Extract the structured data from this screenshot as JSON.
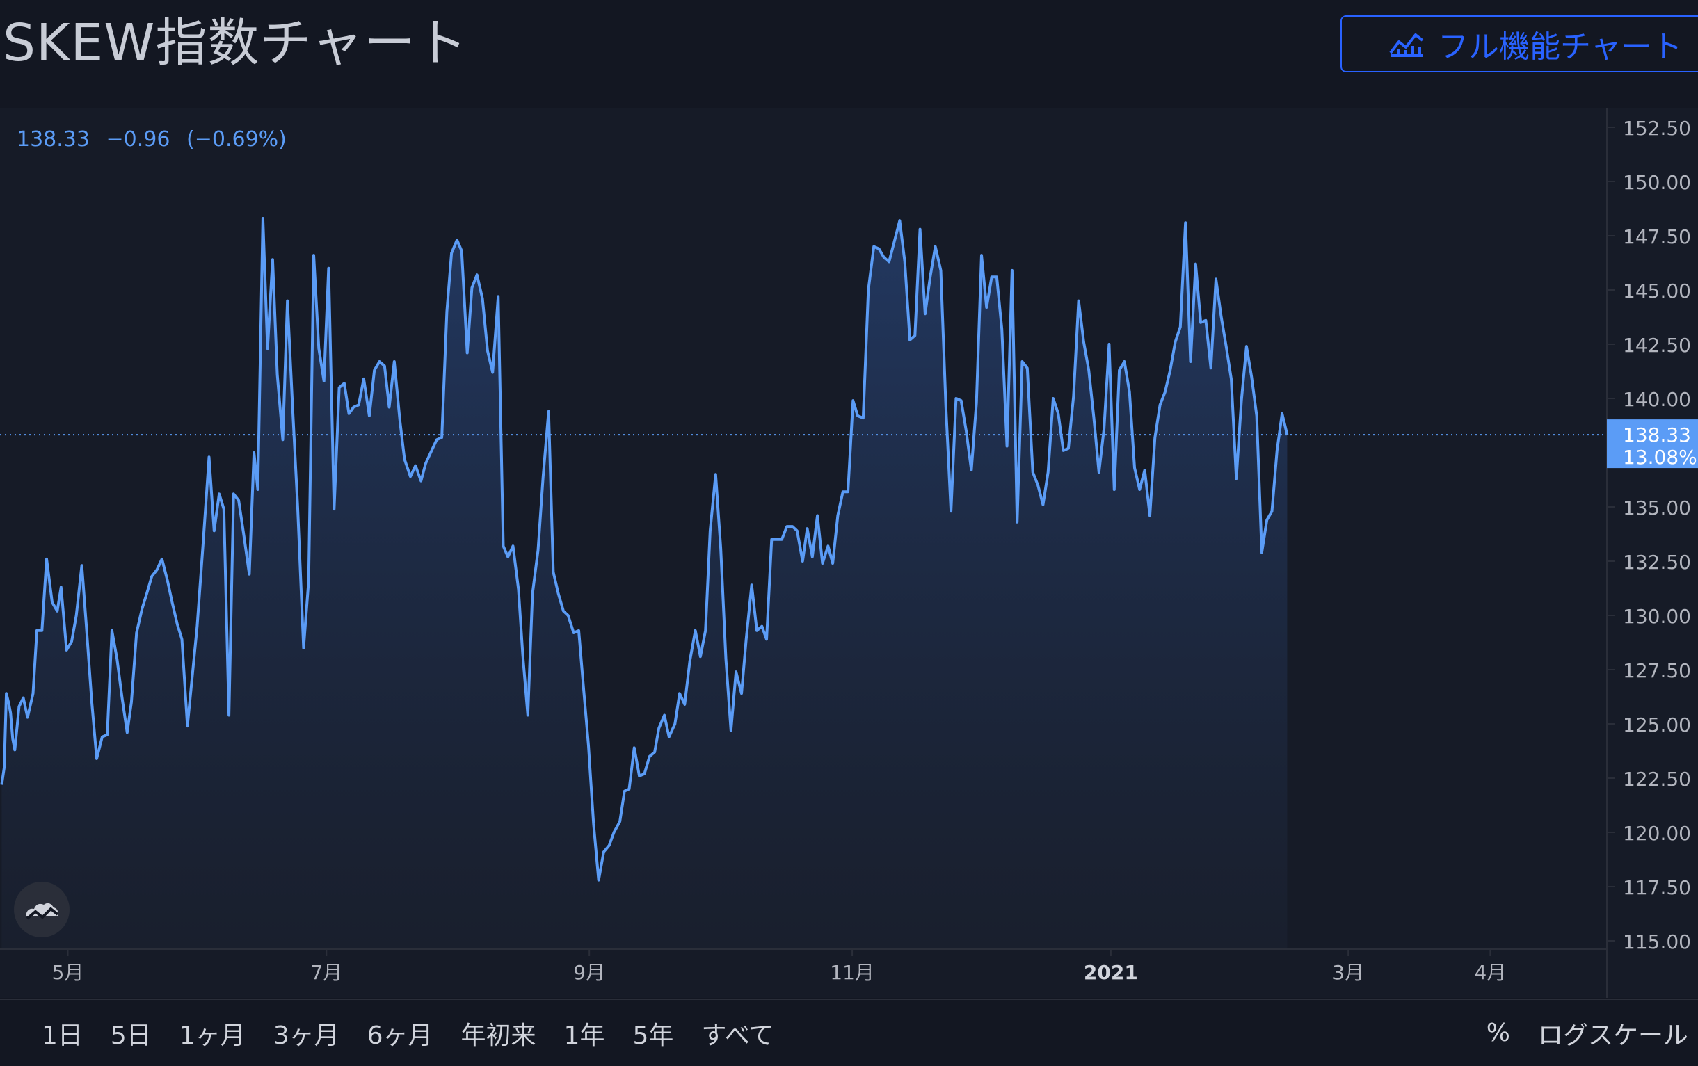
{
  "header": {
    "title": "SKEW指数チャート",
    "full_chart_button": "フル機能チャート"
  },
  "quote": {
    "last": "138.33",
    "change": "−0.96",
    "change_pct": "(−0.69%)"
  },
  "price_label": {
    "value": "138.33",
    "pct": "13.08%"
  },
  "range_buttons": [
    "1日",
    "5日",
    "1ヶ月",
    "3ヶ月",
    "6ヶ月",
    "年初来",
    "1年",
    "5年",
    "すべて"
  ],
  "right_buttons": {
    "percent": "%",
    "log_scale": "ログスケール"
  },
  "colors": {
    "background": "#131722",
    "line": "#5b9cf6",
    "accent": "#2962ff",
    "text": "#d1d4dc"
  },
  "chart_data": {
    "type": "area",
    "y_ticks": [
      "152.50",
      "150.00",
      "147.50",
      "145.00",
      "142.50",
      "140.00",
      "137.50",
      "135.00",
      "132.50",
      "130.00",
      "127.50",
      "125.00",
      "122.50",
      "120.00",
      "117.50",
      "115.00"
    ],
    "ylim": [
      114.7,
      153.4
    ],
    "x_ticks": [
      {
        "label": "5月",
        "x": 9.0
      },
      {
        "label": "7月",
        "x": 70.0
      },
      {
        "label": "9月",
        "x": 132.0
      },
      {
        "label": "11月",
        "x": 194.0
      },
      {
        "label": "2021",
        "x": 255.0,
        "bold": true
      },
      {
        "label": "3月",
        "x": 311.0
      },
      {
        "label": "4月",
        "x": 344.5
      }
    ],
    "x_domain": [
      -7,
      372
    ],
    "last_value": 138.33,
    "series": [
      {
        "points": [
          [
            -6.6,
            122.2
          ],
          [
            -6.0,
            123.0
          ],
          [
            -5.5,
            126.4
          ],
          [
            -5.0,
            126.0
          ],
          [
            -4.5,
            125.5
          ],
          [
            -4.0,
            124.3
          ],
          [
            -3.5,
            123.8
          ],
          [
            -2.5,
            125.8
          ],
          [
            -1.5,
            126.2
          ],
          [
            -0.5,
            125.3
          ],
          [
            0.8,
            126.4
          ],
          [
            1.7,
            129.3
          ],
          [
            2.9,
            129.3
          ],
          [
            4.0,
            132.6
          ],
          [
            5.3,
            130.6
          ],
          [
            6.5,
            130.2
          ],
          [
            7.4,
            131.3
          ],
          [
            8.7,
            128.4
          ],
          [
            9.9,
            128.8
          ],
          [
            11.0,
            130.0
          ],
          [
            12.3,
            132.3
          ],
          [
            13.3,
            129.7
          ],
          [
            14.6,
            126.1
          ],
          [
            15.8,
            123.4
          ],
          [
            17.1,
            124.4
          ],
          [
            18.3,
            124.5
          ],
          [
            19.4,
            129.3
          ],
          [
            20.6,
            128.0
          ],
          [
            21.8,
            126.2
          ],
          [
            23.0,
            124.6
          ],
          [
            24.0,
            126.0
          ],
          [
            25.2,
            129.2
          ],
          [
            26.5,
            130.3
          ],
          [
            27.6,
            131.0
          ],
          [
            28.8,
            131.8
          ],
          [
            30.0,
            132.1
          ],
          [
            31.2,
            132.6
          ],
          [
            32.5,
            131.6
          ],
          [
            33.6,
            130.6
          ],
          [
            34.8,
            129.6
          ],
          [
            35.9,
            128.9
          ],
          [
            37.2,
            124.9
          ],
          [
            39.5,
            129.5
          ],
          [
            41.0,
            133.6
          ],
          [
            42.3,
            137.3
          ],
          [
            43.5,
            133.9
          ],
          [
            44.7,
            135.6
          ],
          [
            45.8,
            134.9
          ],
          [
            47.0,
            125.4
          ],
          [
            48.1,
            135.6
          ],
          [
            49.3,
            135.3
          ],
          [
            50.5,
            133.7
          ],
          [
            51.8,
            131.9
          ],
          [
            52.9,
            137.5
          ],
          [
            53.8,
            135.8
          ],
          [
            55.0,
            148.3
          ],
          [
            56.1,
            142.3
          ],
          [
            57.3,
            146.4
          ],
          [
            58.4,
            141.1
          ],
          [
            59.7,
            138.1
          ],
          [
            60.8,
            144.5
          ],
          [
            62.0,
            139.6
          ],
          [
            63.2,
            135.0
          ],
          [
            64.6,
            128.5
          ],
          [
            65.8,
            131.6
          ],
          [
            67.0,
            146.6
          ],
          [
            68.2,
            142.3
          ],
          [
            69.4,
            140.8
          ],
          [
            70.5,
            146.0
          ],
          [
            71.8,
            134.9
          ],
          [
            73.0,
            140.5
          ],
          [
            74.2,
            140.7
          ],
          [
            75.3,
            139.3
          ],
          [
            76.4,
            139.6
          ],
          [
            77.6,
            139.7
          ],
          [
            78.8,
            140.9
          ],
          [
            80.1,
            139.2
          ],
          [
            81.3,
            141.3
          ],
          [
            82.5,
            141.7
          ],
          [
            83.7,
            141.5
          ],
          [
            84.8,
            139.6
          ],
          [
            86.0,
            141.7
          ],
          [
            87.3,
            139.0
          ],
          [
            88.4,
            137.2
          ],
          [
            89.8,
            136.4
          ],
          [
            91.0,
            136.9
          ],
          [
            92.3,
            136.2
          ],
          [
            93.4,
            137.0
          ],
          [
            94.8,
            137.6
          ],
          [
            96.0,
            138.1
          ],
          [
            97.2,
            138.2
          ],
          [
            98.4,
            144.0
          ],
          [
            99.5,
            146.7
          ],
          [
            100.8,
            147.3
          ],
          [
            101.9,
            146.8
          ],
          [
            103.2,
            142.1
          ],
          [
            104.3,
            145.1
          ],
          [
            105.5,
            145.7
          ],
          [
            106.8,
            144.6
          ],
          [
            108.0,
            142.2
          ],
          [
            109.2,
            141.2
          ],
          [
            110.5,
            144.7
          ],
          [
            111.7,
            133.2
          ],
          [
            112.8,
            132.7
          ],
          [
            114.0,
            133.2
          ],
          [
            115.3,
            131.2
          ],
          [
            116.3,
            128.2
          ],
          [
            117.5,
            125.4
          ],
          [
            118.6,
            131.0
          ],
          [
            119.9,
            133.0
          ],
          [
            121.1,
            136.4
          ],
          [
            122.4,
            139.4
          ],
          [
            123.5,
            132.0
          ],
          [
            124.7,
            131.0
          ],
          [
            125.9,
            130.2
          ],
          [
            127.0,
            130.0
          ],
          [
            128.3,
            129.2
          ],
          [
            129.5,
            129.3
          ],
          [
            130.7,
            126.5
          ],
          [
            131.8,
            124.0
          ],
          [
            133.0,
            120.4
          ],
          [
            134.2,
            117.8
          ],
          [
            135.4,
            119.1
          ],
          [
            136.7,
            119.4
          ],
          [
            137.8,
            120.0
          ],
          [
            139.2,
            120.5
          ],
          [
            140.3,
            121.9
          ],
          [
            141.4,
            122.0
          ],
          [
            142.6,
            123.9
          ],
          [
            143.8,
            122.6
          ],
          [
            145.0,
            122.7
          ],
          [
            146.2,
            123.5
          ],
          [
            147.4,
            123.7
          ],
          [
            148.4,
            124.8
          ],
          [
            149.7,
            125.4
          ],
          [
            150.8,
            124.4
          ],
          [
            152.2,
            125.0
          ],
          [
            153.3,
            126.4
          ],
          [
            154.5,
            125.9
          ],
          [
            155.7,
            127.9
          ],
          [
            157.0,
            129.3
          ],
          [
            158.2,
            128.1
          ],
          [
            159.4,
            129.3
          ],
          [
            160.5,
            133.9
          ],
          [
            161.8,
            136.5
          ],
          [
            163.0,
            133.1
          ],
          [
            164.2,
            128.0
          ],
          [
            165.4,
            124.7
          ],
          [
            166.6,
            127.4
          ],
          [
            167.9,
            126.4
          ],
          [
            169.0,
            128.9
          ],
          [
            170.3,
            131.4
          ],
          [
            171.5,
            129.3
          ],
          [
            172.7,
            129.5
          ],
          [
            173.8,
            128.9
          ],
          [
            175.0,
            133.5
          ],
          [
            176.2,
            133.5
          ],
          [
            177.4,
            133.5
          ],
          [
            178.6,
            134.1
          ],
          [
            179.9,
            134.1
          ],
          [
            181.0,
            133.9
          ],
          [
            182.3,
            132.5
          ],
          [
            183.4,
            134.0
          ],
          [
            184.6,
            132.7
          ],
          [
            185.8,
            134.6
          ],
          [
            187.0,
            132.4
          ],
          [
            188.3,
            133.2
          ],
          [
            189.4,
            132.4
          ],
          [
            190.6,
            134.6
          ],
          [
            191.8,
            135.7
          ],
          [
            193.0,
            135.7
          ],
          [
            194.2,
            139.9
          ],
          [
            195.3,
            139.2
          ],
          [
            196.6,
            139.1
          ],
          [
            197.8,
            145.0
          ],
          [
            199.1,
            147.0
          ],
          [
            200.3,
            146.9
          ],
          [
            201.5,
            146.5
          ],
          [
            202.7,
            146.3
          ],
          [
            203.9,
            147.2
          ],
          [
            205.2,
            148.2
          ],
          [
            206.4,
            146.3
          ],
          [
            207.6,
            142.7
          ],
          [
            208.8,
            142.9
          ],
          [
            210.0,
            147.8
          ],
          [
            211.2,
            143.9
          ],
          [
            212.4,
            145.6
          ],
          [
            213.6,
            147.0
          ],
          [
            214.9,
            145.9
          ],
          [
            216.1,
            139.6
          ],
          [
            217.3,
            134.8
          ],
          [
            218.5,
            140.0
          ],
          [
            219.7,
            139.9
          ],
          [
            220.9,
            138.5
          ],
          [
            222.1,
            136.7
          ],
          [
            223.3,
            139.8
          ],
          [
            224.5,
            146.6
          ],
          [
            225.7,
            144.2
          ],
          [
            226.9,
            145.6
          ],
          [
            228.1,
            145.6
          ],
          [
            229.3,
            143.2
          ],
          [
            230.5,
            137.8
          ],
          [
            231.7,
            145.9
          ],
          [
            232.9,
            134.3
          ],
          [
            234.1,
            141.7
          ],
          [
            235.3,
            141.4
          ],
          [
            236.6,
            136.6
          ],
          [
            237.8,
            136.0
          ],
          [
            239.0,
            135.1
          ],
          [
            240.2,
            136.6
          ],
          [
            241.4,
            140.0
          ],
          [
            242.6,
            139.3
          ],
          [
            243.8,
            137.6
          ],
          [
            245.0,
            137.7
          ],
          [
            246.2,
            140.1
          ],
          [
            247.4,
            144.5
          ],
          [
            248.6,
            142.6
          ],
          [
            249.8,
            141.3
          ],
          [
            251.0,
            139.1
          ],
          [
            252.2,
            136.6
          ],
          [
            253.4,
            138.6
          ],
          [
            254.6,
            142.5
          ],
          [
            255.8,
            135.8
          ],
          [
            257.0,
            141.3
          ],
          [
            258.2,
            141.7
          ],
          [
            259.4,
            140.3
          ],
          [
            260.6,
            136.8
          ],
          [
            261.8,
            135.8
          ],
          [
            263.0,
            136.7
          ],
          [
            264.2,
            134.6
          ],
          [
            265.4,
            138.2
          ],
          [
            266.6,
            139.7
          ],
          [
            267.8,
            140.3
          ],
          [
            269.0,
            141.3
          ],
          [
            270.2,
            142.6
          ],
          [
            271.4,
            143.3
          ],
          [
            272.6,
            148.1
          ],
          [
            273.8,
            141.7
          ],
          [
            275.0,
            146.2
          ],
          [
            276.2,
            143.5
          ],
          [
            277.4,
            143.6
          ],
          [
            278.6,
            141.4
          ],
          [
            279.8,
            145.5
          ],
          [
            281.0,
            143.8
          ],
          [
            282.2,
            142.4
          ],
          [
            283.4,
            140.9
          ],
          [
            284.6,
            136.3
          ],
          [
            285.8,
            139.9
          ],
          [
            287.0,
            142.4
          ],
          [
            288.2,
            141.0
          ],
          [
            289.4,
            139.2
          ],
          [
            290.6,
            132.9
          ],
          [
            291.8,
            134.4
          ],
          [
            293.0,
            134.8
          ],
          [
            294.2,
            137.6
          ],
          [
            295.4,
            139.3
          ],
          [
            296.6,
            138.33
          ]
        ]
      }
    ]
  }
}
